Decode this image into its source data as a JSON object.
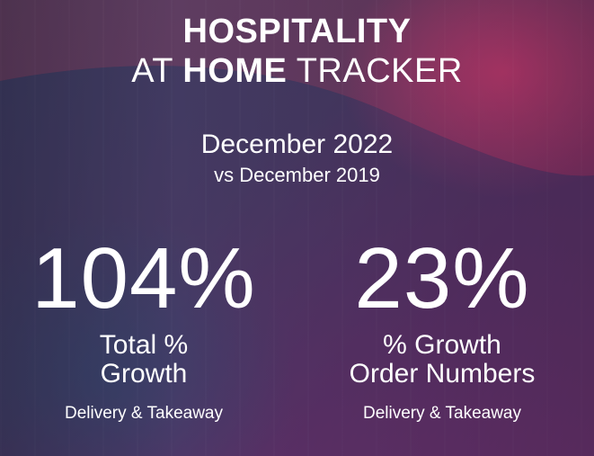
{
  "header": {
    "title_line1": "HOSPITALITY",
    "title_line2_prefix": "AT",
    "title_line2_bold": "HOME",
    "title_line2_suffix": "TRACKER"
  },
  "period": {
    "main": "December 2022",
    "comparison": "vs December 2019"
  },
  "stats": [
    {
      "value": "104%",
      "label_line1": "Total %",
      "label_line2": "Growth",
      "note": "Delivery & Takeaway"
    },
    {
      "value": "23%",
      "label_line1": "% Growth",
      "label_line2": "Order Numbers",
      "note": "Delivery & Takeaway"
    }
  ],
  "colors": {
    "accent_pink": "#e0337a",
    "overlay_purple": "#5a3a6a",
    "text": "#ffffff"
  }
}
